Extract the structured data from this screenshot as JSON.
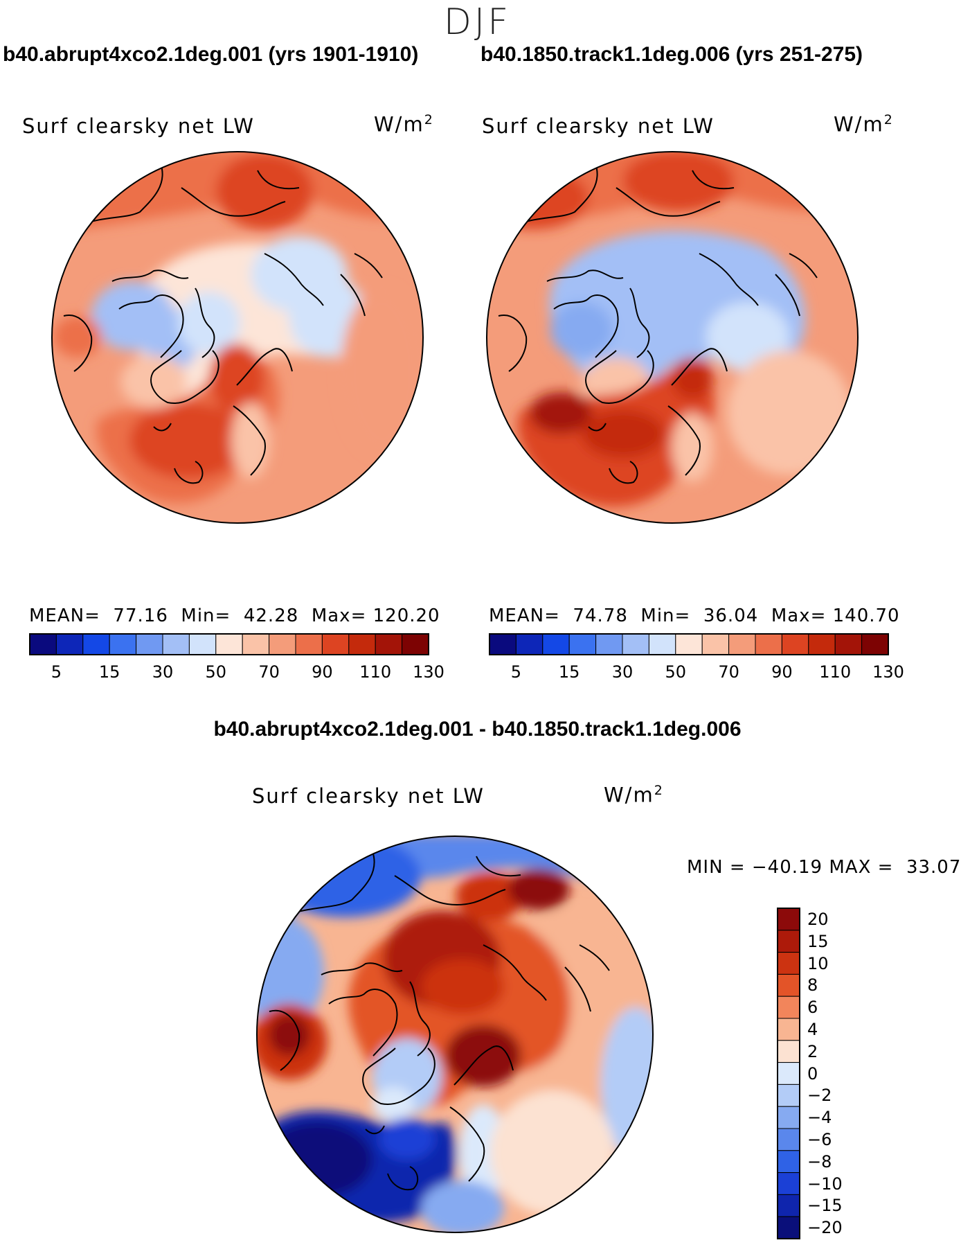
{
  "season": "DJF",
  "panels": [
    {
      "title": "b40.abrupt4xco2.1deg.001 (yrs 1901-1910)",
      "variable": "Surf clearsky net LW",
      "units_base": "W/m",
      "units_exp": "2",
      "stats": {
        "mean_label": "MEAN=",
        "mean": "77.16",
        "min_label": "Min=",
        "min": "42.28",
        "max_label": "Max=",
        "max": "120.20"
      }
    },
    {
      "title": "b40.1850.track1.1deg.006 (yrs 251-275)",
      "variable": "Surf clearsky net LW",
      "units_base": "W/m",
      "units_exp": "2",
      "stats": {
        "mean_label": "MEAN=",
        "mean": "74.78",
        "min_label": "Min=",
        "min": "36.04",
        "max_label": "Max=",
        "max": "140.70"
      }
    }
  ],
  "colorbar_abs": {
    "colors": [
      "#0a0a7e",
      "#0d26b8",
      "#1448e6",
      "#3b72f0",
      "#7099f2",
      "#a3bff6",
      "#d2e3fb",
      "#fde5d8",
      "#fac3a8",
      "#f49c7a",
      "#ec6f4a",
      "#dd4422",
      "#c42a0c",
      "#a31408",
      "#7d0303"
    ],
    "tick_labels": [
      "5",
      "15",
      "30",
      "50",
      "70",
      "90",
      "110",
      "130"
    ]
  },
  "diff_panel": {
    "title": "b40.abrupt4xco2.1deg.001 - b40.1850.track1.1deg.006",
    "variable": "Surf clearsky net LW",
    "units_base": "W/m",
    "units_exp": "2",
    "minmax_text": "MIN = −40.19 MAX =  33.07"
  },
  "colorbar_diff": {
    "colors_top_to_bottom": [
      "#8c0a0a",
      "#ad1a0a",
      "#cc3311",
      "#e35428",
      "#f2855b",
      "#f8b592",
      "#fce2d2",
      "#dbe9fb",
      "#b3ccf7",
      "#86aaf1",
      "#5a87ec",
      "#2f62e6",
      "#1b40d6",
      "#0f25ad",
      "#0a0f7a"
    ],
    "tick_labels": [
      "20",
      "15",
      "10",
      "8",
      "6",
      "4",
      "2",
      "0",
      "−2",
      "−4",
      "−6",
      "−8",
      "−10",
      "−15",
      "−20"
    ]
  }
}
